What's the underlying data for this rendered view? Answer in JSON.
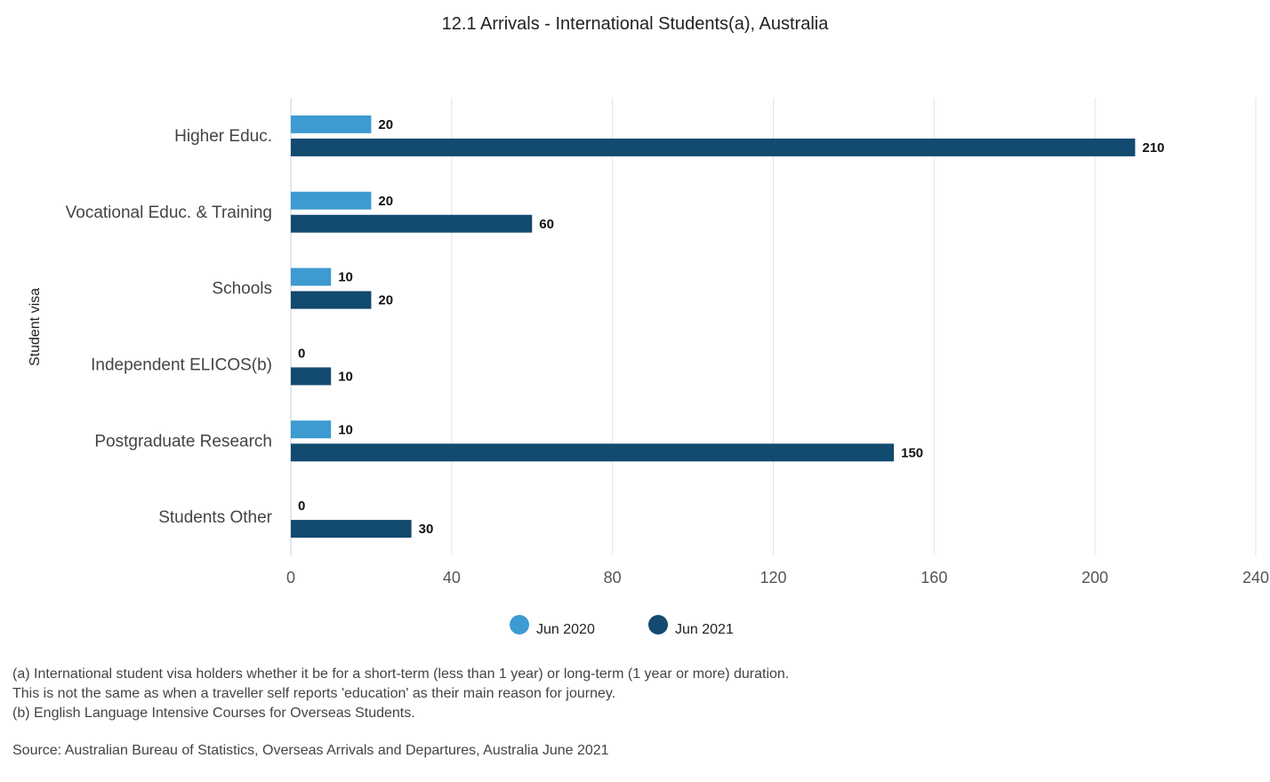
{
  "chart_data": {
    "type": "bar",
    "orientation": "horizontal",
    "title": "12.1 Arrivals - International Students(a), Australia",
    "ylabel": "Student visa",
    "xlabel": "",
    "categories": [
      "Higher Educ.",
      "Vocational Educ. & Training",
      "Schools",
      "Independent ELICOS(b)",
      "Postgraduate Research",
      "Students Other"
    ],
    "series": [
      {
        "name": "Jun 2020",
        "color": "#3d9bd1",
        "values": [
          20,
          20,
          10,
          0,
          10,
          0
        ]
      },
      {
        "name": "Jun 2021",
        "color": "#134a70",
        "values": [
          210,
          60,
          20,
          10,
          150,
          30
        ]
      }
    ],
    "xlim": [
      0,
      240
    ],
    "xticks": [
      0,
      40,
      80,
      120,
      160,
      200,
      240
    ],
    "grid": true,
    "legend_position": "bottom-center"
  },
  "notes": [
    "(a) International student visa holders whether it be for a short-term (less than 1 year) or long-term (1 year or more) duration.",
    "This is not the same as when a traveller self reports 'education' as their main reason for journey.",
    "(b) English Language Intensive Courses for Overseas Students."
  ],
  "source": "Source: Australian Bureau of Statistics, Overseas Arrivals and Departures, Australia June 2021"
}
